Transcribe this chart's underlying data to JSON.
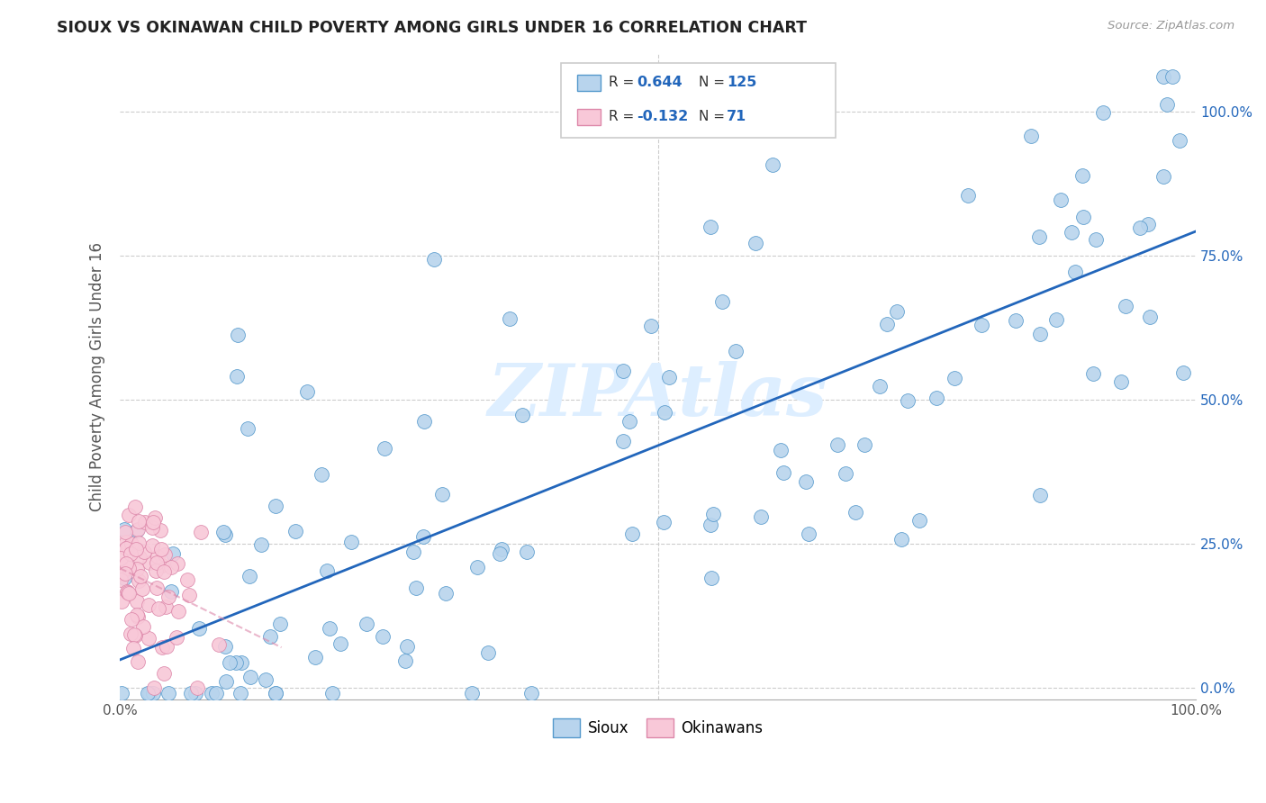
{
  "title": "SIOUX VS OKINAWAN CHILD POVERTY AMONG GIRLS UNDER 16 CORRELATION CHART",
  "source": "Source: ZipAtlas.com",
  "ylabel": "Child Poverty Among Girls Under 16",
  "xlim": [
    0,
    1
  ],
  "ylim": [
    -0.02,
    1.1
  ],
  "blue_R": 0.644,
  "blue_N": 125,
  "pink_R": -0.132,
  "pink_N": 71,
  "blue_color": "#b8d4ed",
  "blue_edge_color": "#5599cc",
  "blue_line_color": "#2266bb",
  "pink_color": "#f8c8d8",
  "pink_edge_color": "#dd88aa",
  "pink_line_color": "#dd88aa",
  "bg_color": "#ffffff",
  "grid_color": "#cccccc",
  "watermark_color": "#ddeeff",
  "right_tick_color": "#2266bb",
  "title_color": "#222222",
  "ylabel_color": "#555555",
  "xtick_color": "#555555",
  "legend_facecolor": "#ffffff",
  "legend_edgecolor": "#cccccc",
  "blue_legend_facecolor": "#b8d4ed",
  "blue_legend_edgecolor": "#5599cc",
  "pink_legend_facecolor": "#f8c8d8",
  "pink_legend_edgecolor": "#dd88aa",
  "bottom_legend_blue_facecolor": "#b8d4ed",
  "bottom_legend_blue_edgecolor": "#5599cc",
  "bottom_legend_pink_facecolor": "#f8c8d8",
  "bottom_legend_pink_edgecolor": "#dd88aa"
}
